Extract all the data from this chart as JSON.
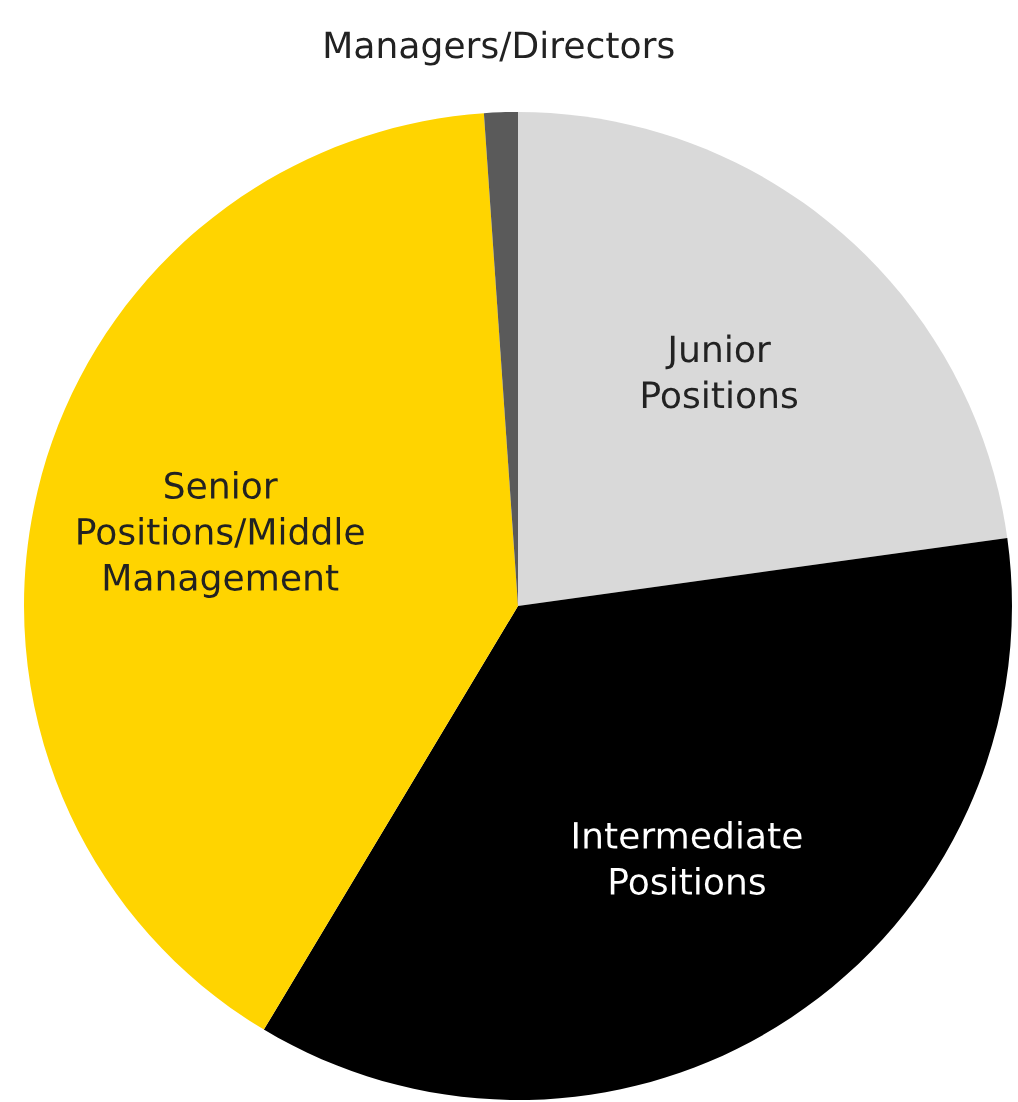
{
  "chart_data": {
    "type": "pie",
    "categories": [
      "Junior\nPositions",
      "Intermediate\nPositions",
      "Senior\nPositions/Middle\nManagement",
      "Managers/Directors"
    ],
    "values": [
      22.8,
      35.8,
      40.3,
      1.1
    ],
    "colors": [
      "#d9d9d9",
      "#000000",
      "#ffd400",
      "#5a5a5a"
    ]
  }
}
